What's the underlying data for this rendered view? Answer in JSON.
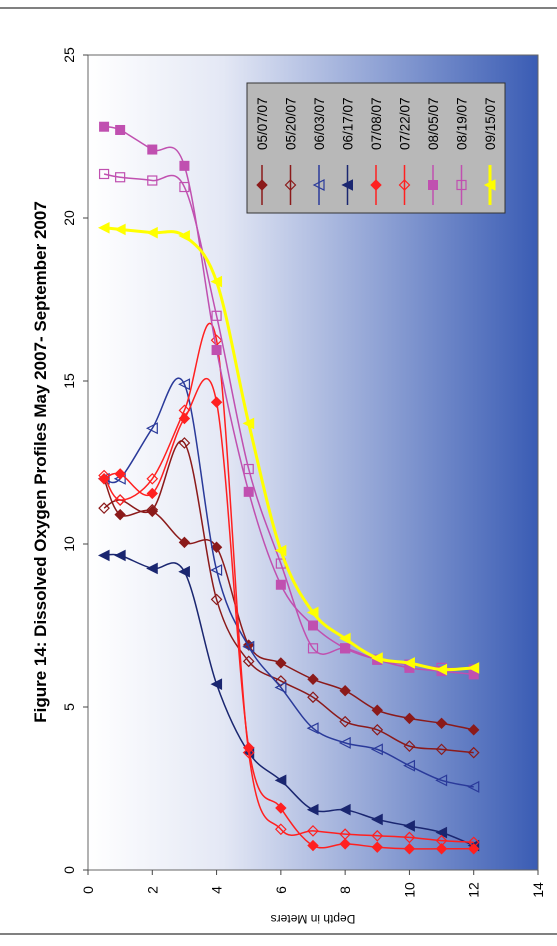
{
  "chart_data": {
    "type": "line",
    "title": "Figure 14: Dissolved Oxygen Profiles May 2007- September 2007",
    "x_label": "Depth in Meters",
    "x": [
      0.5,
      1,
      2,
      3,
      4,
      5,
      6,
      7,
      8,
      9,
      10,
      11,
      12
    ],
    "xlim": [
      0,
      14
    ],
    "xticks": [
      0,
      2,
      4,
      6,
      8,
      10,
      12,
      14
    ],
    "ylim": [
      0,
      25
    ],
    "yticks": [
      0,
      5,
      10,
      15,
      20,
      25
    ],
    "series": [
      {
        "name": "05/07/07",
        "color": "#8b1a1a",
        "marker": "diamond",
        "values": [
          12.0,
          10.9,
          11.0,
          10.05,
          9.9,
          6.9,
          6.35,
          5.85,
          5.5,
          4.9,
          4.65,
          4.5,
          4.3
        ]
      },
      {
        "name": "05/20/07",
        "color": "#8b1a1a",
        "marker": "diamond-open",
        "values": [
          11.1,
          11.35,
          11.05,
          13.1,
          8.3,
          6.4,
          5.8,
          5.3,
          4.55,
          4.3,
          3.8,
          3.7,
          3.6
        ]
      },
      {
        "name": "06/03/07",
        "color": "#2a3a9a",
        "marker": "triangle-open",
        "values": [
          12.0,
          12.0,
          13.55,
          14.9,
          9.2,
          6.85,
          5.6,
          4.35,
          3.9,
          3.7,
          3.2,
          2.75,
          2.55
        ]
      },
      {
        "name": "06/17/07",
        "color": "#1a2670",
        "marker": "triangle",
        "values": [
          9.65,
          9.65,
          9.25,
          9.15,
          5.7,
          3.6,
          2.75,
          1.85,
          1.85,
          1.55,
          1.35,
          1.15,
          0.75
        ]
      },
      {
        "name": "07/08/07",
        "color": "#ff2020",
        "marker": "diamond",
        "values": [
          12.0,
          12.15,
          11.55,
          13.85,
          14.35,
          3.75,
          1.9,
          0.75,
          0.8,
          0.7,
          0.65,
          0.65,
          0.65
        ]
      },
      {
        "name": "07/22/07",
        "color": "#ff2020",
        "marker": "diamond-open",
        "values": [
          12.1,
          11.35,
          12.0,
          14.1,
          16.25,
          3.6,
          1.25,
          1.2,
          1.1,
          1.05,
          1.0,
          0.9,
          0.85
        ]
      },
      {
        "name": "08/05/07",
        "color": "#c050b0",
        "marker": "square",
        "values": [
          22.8,
          22.7,
          22.1,
          21.6,
          15.95,
          11.6,
          8.75,
          7.5,
          6.8,
          6.45,
          6.2,
          6.1,
          6.0
        ]
      },
      {
        "name": "08/19/07",
        "color": "#c050b0",
        "marker": "square-open",
        "values": [
          21.35,
          21.25,
          21.15,
          20.95,
          17.0,
          12.3,
          9.4,
          6.8,
          6.8,
          6.45,
          6.3,
          6.2,
          6.15
        ]
      },
      {
        "name": "09/15/07",
        "color": "#ffff00",
        "marker": "triangle",
        "values": [
          19.7,
          19.65,
          19.55,
          19.45,
          18.05,
          13.7,
          9.8,
          7.9,
          7.1,
          6.5,
          6.35,
          6.15,
          6.2
        ]
      }
    ]
  }
}
